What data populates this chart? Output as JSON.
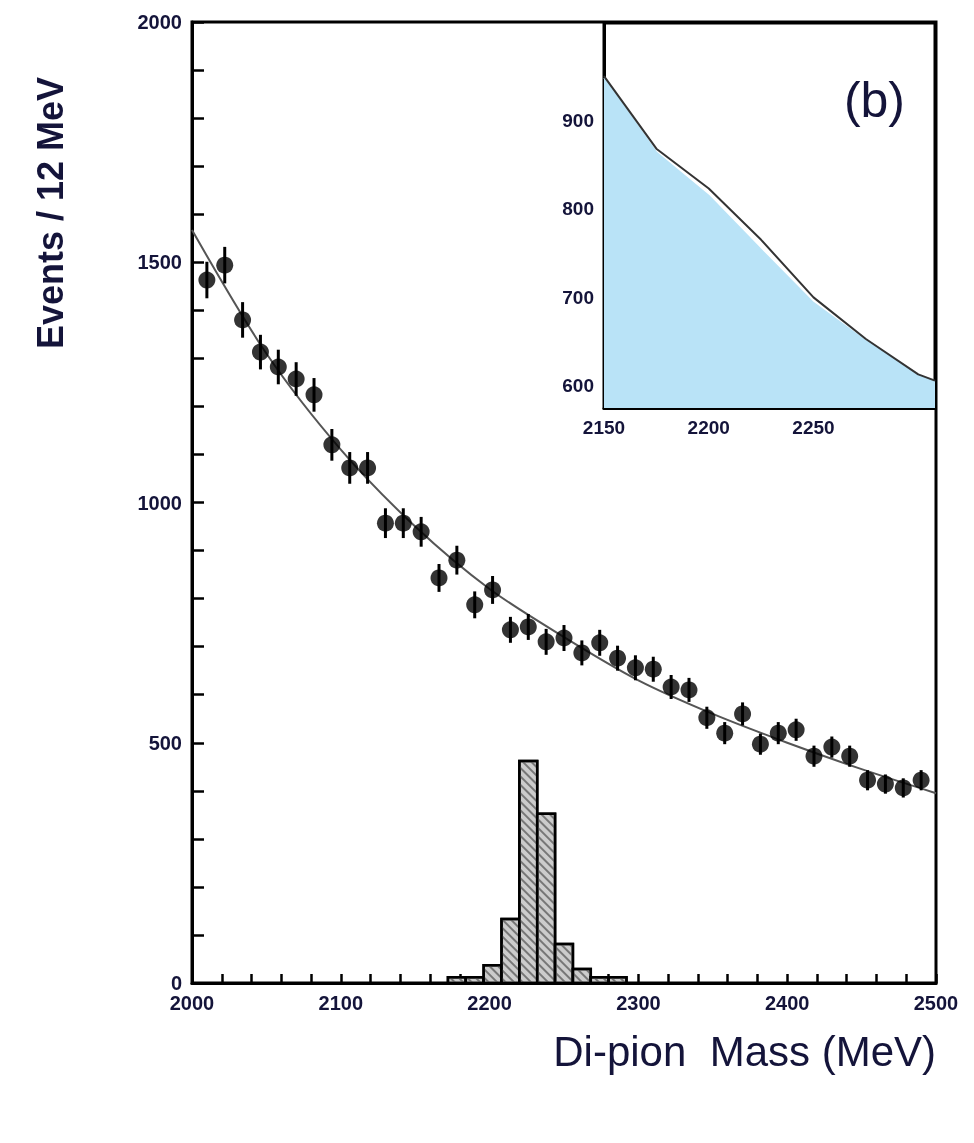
{
  "chart_data": [
    {
      "type": "scatter",
      "xlabel": "Di-pion  Mass (MeV)",
      "ylabel": "Events / 12 MeV",
      "xlim": [
        2000,
        2500
      ],
      "ylim": [
        0,
        2000
      ],
      "xticks": [
        2000,
        {
          "value": 2020,
          "label": null
        },
        {
          "value": 2040,
          "label": null
        },
        {
          "value": 2060,
          "label": null
        },
        {
          "value": 2080,
          "label": null
        },
        2100,
        {
          "value": 2120,
          "label": null
        },
        {
          "value": 2140,
          "label": null
        },
        {
          "value": 2160,
          "label": null
        },
        {
          "value": 2180,
          "label": null
        },
        2200,
        {
          "value": 2220,
          "label": null
        },
        {
          "value": 2240,
          "label": null
        },
        {
          "value": 2260,
          "label": null
        },
        {
          "value": 2280,
          "label": null
        },
        2300,
        {
          "value": 2320,
          "label": null
        },
        {
          "value": 2340,
          "label": null
        },
        {
          "value": 2360,
          "label": null
        },
        {
          "value": 2380,
          "label": null
        },
        2400,
        {
          "value": 2420,
          "label": null
        },
        {
          "value": 2440,
          "label": null
        },
        {
          "value": 2460,
          "label": null
        },
        {
          "value": 2480,
          "label": null
        },
        2500
      ],
      "yticks": [
        0,
        {
          "value": 100,
          "label": null
        },
        {
          "value": 200,
          "label": null
        },
        {
          "value": 300,
          "label": null
        },
        {
          "value": 400,
          "label": null
        },
        500,
        {
          "value": 600,
          "label": null
        },
        {
          "value": 700,
          "label": null
        },
        {
          "value": 800,
          "label": null
        },
        {
          "value": 900,
          "label": null
        },
        1000,
        {
          "value": 1100,
          "label": null
        },
        {
          "value": 1200,
          "label": null
        },
        {
          "value": 1300,
          "label": null
        },
        {
          "value": 1400,
          "label": null
        },
        1500,
        {
          "value": 1600,
          "label": null
        },
        {
          "value": 1700,
          "label": null
        },
        {
          "value": 1800,
          "label": null
        },
        {
          "value": 1900,
          "label": null
        },
        2000
      ],
      "series": [
        {
          "type": "histogram",
          "color": "#cccccc",
          "bins": [
            2172,
            2184,
            2196,
            2208,
            2220,
            2232,
            2244,
            2256,
            2268,
            2280,
            2292
          ],
          "values": [
            12,
            12,
            37,
            133,
            462,
            352,
            81,
            29,
            12,
            12
          ]
        },
        {
          "type": "line",
          "color": "#555555",
          "x": [
            2000,
            2050,
            2100,
            2150,
            2200,
            2250,
            2300,
            2350,
            2400,
            2450,
            2500
          ],
          "values": [
            1567,
            1310,
            1110,
            950,
            820,
            720,
            630,
            560,
            500,
            445,
            395
          ]
        },
        {
          "color": "#000000",
          "marker": "circle",
          "x": [
            2010,
            2022,
            2034,
            2046,
            2058,
            2070,
            2082,
            2094,
            2106,
            2118,
            2130,
            2142,
            2154,
            2166,
            2178,
            2190,
            2202,
            2214,
            2226,
            2238,
            2250,
            2262,
            2274,
            2286,
            2298,
            2310,
            2322,
            2334,
            2346,
            2358,
            2370,
            2382,
            2394,
            2406,
            2418,
            2430,
            2442,
            2454,
            2466,
            2478,
            2490
          ],
          "values": [
            1463,
            1494,
            1380,
            1313,
            1282,
            1257,
            1224,
            1120,
            1072,
            1072,
            957,
            957,
            939,
            843,
            880,
            787,
            818,
            735,
            741,
            710,
            718,
            687,
            708,
            676,
            656,
            653,
            616,
            610,
            552,
            520,
            560,
            497,
            520,
            527,
            472,
            491,
            472,
            422,
            414,
            406,
            422
          ],
          "errors": [
            38,
            38,
            37,
            36,
            36,
            35,
            35,
            33,
            33,
            33,
            31,
            31,
            31,
            29,
            30,
            28,
            29,
            27,
            27,
            27,
            27,
            26,
            27,
            26,
            26,
            26,
            25,
            25,
            23,
            23,
            24,
            22,
            23,
            23,
            22,
            22,
            22,
            21,
            20,
            20,
            21
          ]
        }
      ]
    },
    {
      "type": "area",
      "xlim": [
        2150,
        2308
      ],
      "ylim": [
        575,
        1010
      ],
      "xticks": [
        2150,
        2200,
        2250
      ],
      "yticks": [
        600,
        700,
        800,
        900
      ],
      "annotations": [
        "(b)"
      ],
      "series": [
        {
          "color": "#b9e3f7",
          "x": [
            2150,
            2175,
            2200,
            2225,
            2250,
            2275,
            2300,
            2308
          ],
          "values": [
            948,
            864,
            815,
            754,
            694,
            651,
            612,
            605
          ]
        },
        {
          "type": "line",
          "color": "#333333",
          "x": [
            2150,
            2175,
            2200,
            2225,
            2250,
            2275,
            2300,
            2308
          ],
          "values": [
            950,
            868,
            823,
            765,
            700,
            653,
            613,
            606
          ]
        }
      ]
    }
  ]
}
